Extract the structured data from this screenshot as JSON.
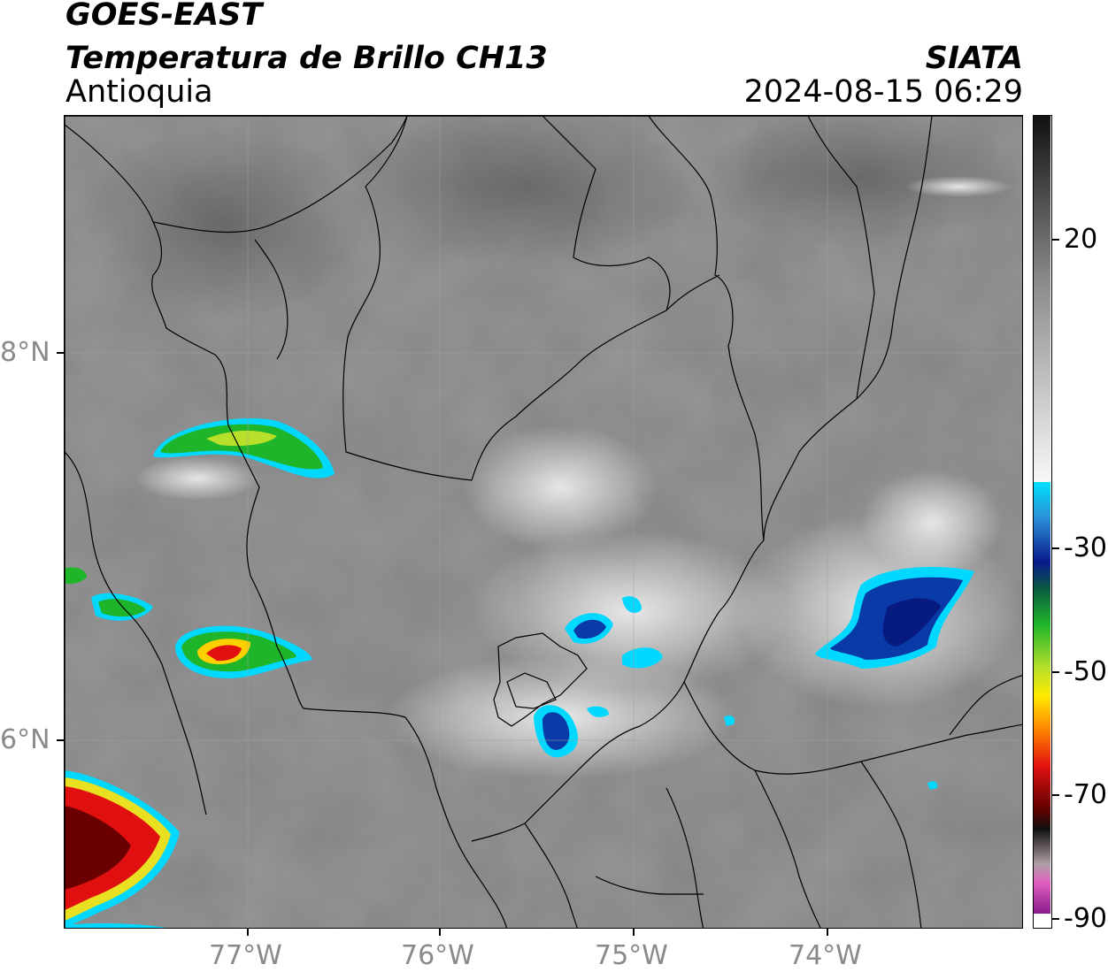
{
  "header": {
    "satellite": "GOES-EAST",
    "product": "Temperatura de Brillo CH13",
    "region": "Antioquia",
    "organization": "SIATA",
    "timestamp": "2024-08-15 06:29"
  },
  "axes": {
    "lon_ticks": [
      "77°W",
      "76°W",
      "75°W",
      "74°W"
    ],
    "lat_ticks": [
      "8°N",
      "6°N"
    ],
    "gridlines": true
  },
  "colorbar": {
    "ticks": [
      "20",
      "-30",
      "-50",
      "-70",
      "-90"
    ],
    "colors": {
      "warm_gray_top": "#111111",
      "warm_gray_bottom": "#f5f5f5",
      "cyan": "#00e0ff",
      "dark_blue": "#0a1a8c",
      "green": "#1fb52a",
      "yellow": "#ffea00",
      "red": "#e01010",
      "dark_red": "#3a0000",
      "magenta": "#e060c0",
      "purple": "#8a1a8a"
    }
  }
}
